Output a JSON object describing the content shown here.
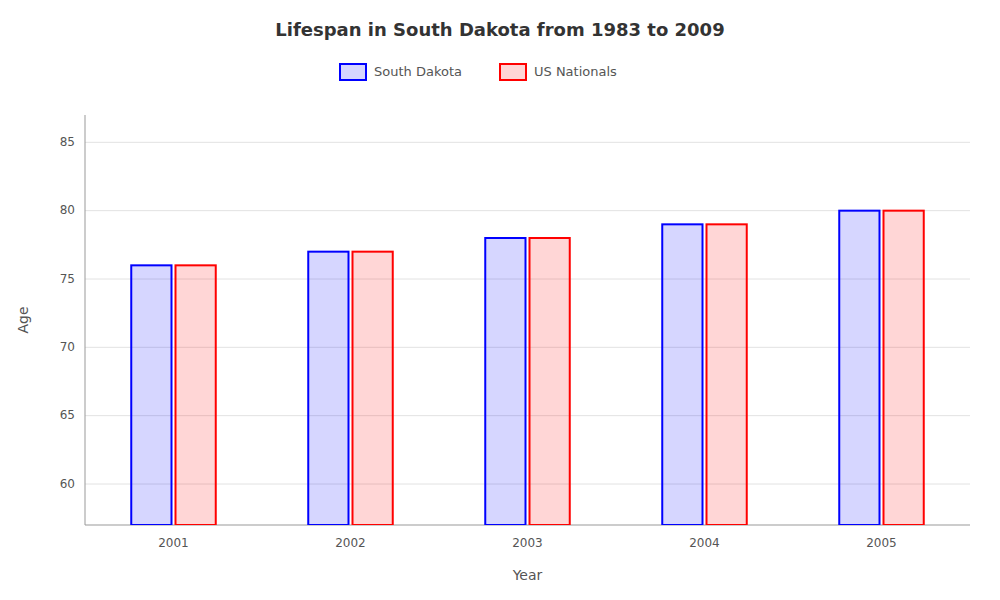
{
  "chart_data": {
    "type": "bar",
    "title": "Lifespan in South Dakota from 1983 to 2009",
    "x_label": "Year",
    "y_label": "Age",
    "categories": [
      "2001",
      "2002",
      "2003",
      "2004",
      "2005"
    ],
    "series": [
      {
        "name": "South Dakota",
        "color": "#0000ff",
        "values": [
          76,
          77,
          78,
          79,
          80
        ]
      },
      {
        "name": "US Nationals",
        "color": "#ff0000",
        "values": [
          76,
          77,
          78,
          79,
          80
        ]
      }
    ],
    "ylim": [
      57,
      87
    ],
    "yticks": [
      60,
      65,
      70,
      75,
      80,
      85
    ],
    "grid": true,
    "legend": "top"
  }
}
